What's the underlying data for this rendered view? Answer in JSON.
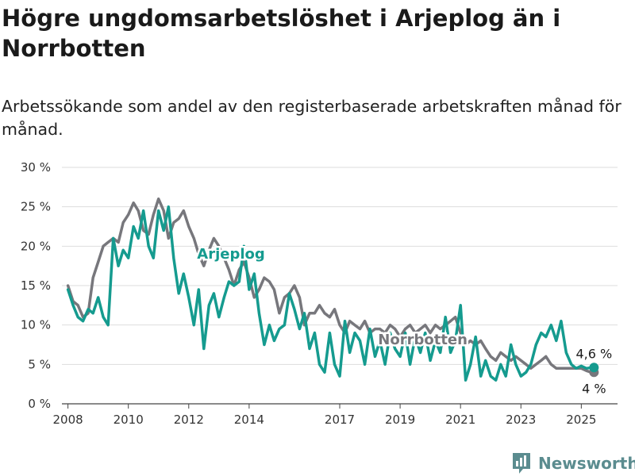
{
  "header": {
    "title": "Högre ungdomsarbetslöshet i Arjeplog än i Norrbotten",
    "subtitle": "Arbetssökande som andel av den registerbaserade arbetskraften månad för månad."
  },
  "brand": {
    "name": "Newsworthy",
    "icon": "bar-chart-logo-icon"
  },
  "chart_data": {
    "type": "line",
    "ylim": [
      0,
      30
    ],
    "xlim": [
      2007.8,
      2026.2
    ],
    "grid": "horizontal",
    "y_ticks": [
      {
        "value": 0,
        "label": "0 %"
      },
      {
        "value": 5,
        "label": "5 %"
      },
      {
        "value": 10,
        "label": "10 %"
      },
      {
        "value": 15,
        "label": "15 %"
      },
      {
        "value": 20,
        "label": "20 %"
      },
      {
        "value": 25,
        "label": "25 %"
      },
      {
        "value": 30,
        "label": "30 %"
      }
    ],
    "x_ticks": [
      {
        "value": 2008,
        "label": "2008"
      },
      {
        "value": 2010,
        "label": "2010"
      },
      {
        "value": 2012,
        "label": "2012"
      },
      {
        "value": 2014,
        "label": "2014"
      },
      {
        "value": 2017,
        "label": "2017"
      },
      {
        "value": 2019,
        "label": "2019"
      },
      {
        "value": 2021,
        "label": "2021"
      },
      {
        "value": 2023,
        "label": "2023"
      },
      {
        "value": 2025,
        "label": "2025"
      }
    ],
    "series": [
      {
        "name": "Norrbotten",
        "color": "#77777c",
        "end_label": "4 %",
        "points": [
          [
            2008.0,
            15
          ],
          [
            2008.17,
            13
          ],
          [
            2008.33,
            12.5
          ],
          [
            2008.5,
            11
          ],
          [
            2008.67,
            11.5
          ],
          [
            2008.83,
            16
          ],
          [
            2009.0,
            18
          ],
          [
            2009.17,
            20
          ],
          [
            2009.33,
            20.5
          ],
          [
            2009.5,
            21
          ],
          [
            2009.67,
            20.5
          ],
          [
            2009.83,
            23
          ],
          [
            2010.0,
            24
          ],
          [
            2010.17,
            25.5
          ],
          [
            2010.33,
            24.5
          ],
          [
            2010.5,
            22
          ],
          [
            2010.67,
            21.5
          ],
          [
            2010.83,
            24
          ],
          [
            2011.0,
            26
          ],
          [
            2011.17,
            24.5
          ],
          [
            2011.33,
            21
          ],
          [
            2011.5,
            23
          ],
          [
            2011.67,
            23.5
          ],
          [
            2011.83,
            24.5
          ],
          [
            2012.0,
            22.5
          ],
          [
            2012.17,
            21
          ],
          [
            2012.33,
            19
          ],
          [
            2012.5,
            17.5
          ],
          [
            2012.67,
            19.5
          ],
          [
            2012.83,
            21
          ],
          [
            2013.0,
            20
          ],
          [
            2013.17,
            18.5
          ],
          [
            2013.33,
            17
          ],
          [
            2013.5,
            15
          ],
          [
            2013.67,
            17
          ],
          [
            2013.83,
            18
          ],
          [
            2014.0,
            16
          ],
          [
            2014.17,
            13.5
          ],
          [
            2014.33,
            14.5
          ],
          [
            2014.5,
            16
          ],
          [
            2014.67,
            15.5
          ],
          [
            2014.83,
            14.5
          ],
          [
            2015.0,
            11.5
          ],
          [
            2015.17,
            13.5
          ],
          [
            2015.33,
            14
          ],
          [
            2015.5,
            15
          ],
          [
            2015.67,
            13.5
          ],
          [
            2015.83,
            10
          ],
          [
            2016.0,
            11.5
          ],
          [
            2016.17,
            11.5
          ],
          [
            2016.33,
            12.5
          ],
          [
            2016.5,
            11.5
          ],
          [
            2016.67,
            11
          ],
          [
            2016.83,
            12
          ],
          [
            2017.0,
            10
          ],
          [
            2017.17,
            9
          ],
          [
            2017.33,
            10.5
          ],
          [
            2017.5,
            10
          ],
          [
            2017.67,
            9.5
          ],
          [
            2017.83,
            10.5
          ],
          [
            2018.0,
            9
          ],
          [
            2018.17,
            9.5
          ],
          [
            2018.33,
            9.5
          ],
          [
            2018.5,
            9
          ],
          [
            2018.67,
            10
          ],
          [
            2018.83,
            9.5
          ],
          [
            2019.0,
            8.5
          ],
          [
            2019.17,
            9.5
          ],
          [
            2019.33,
            10
          ],
          [
            2019.5,
            9
          ],
          [
            2019.67,
            9.5
          ],
          [
            2019.83,
            10
          ],
          [
            2020.0,
            9
          ],
          [
            2020.17,
            10
          ],
          [
            2020.33,
            9.5
          ],
          [
            2020.5,
            10
          ],
          [
            2020.67,
            10.5
          ],
          [
            2020.83,
            11
          ],
          [
            2021.0,
            9
          ],
          [
            2021.17,
            7.5
          ],
          [
            2021.33,
            8
          ],
          [
            2021.5,
            7.5
          ],
          [
            2021.67,
            8
          ],
          [
            2021.83,
            7
          ],
          [
            2022.0,
            6
          ],
          [
            2022.17,
            5.5
          ],
          [
            2022.33,
            6.5
          ],
          [
            2022.5,
            6
          ],
          [
            2022.67,
            5.5
          ],
          [
            2022.83,
            6
          ],
          [
            2023.0,
            5.5
          ],
          [
            2023.17,
            5
          ],
          [
            2023.33,
            4.5
          ],
          [
            2023.5,
            5
          ],
          [
            2023.67,
            5.5
          ],
          [
            2023.83,
            6
          ],
          [
            2024.0,
            5
          ],
          [
            2024.17,
            4.5
          ],
          [
            2024.33,
            4.5
          ],
          [
            2024.5,
            4.5
          ],
          [
            2024.67,
            4.5
          ],
          [
            2024.83,
            4.5
          ],
          [
            2025.0,
            4.5
          ],
          [
            2025.17,
            4.2
          ],
          [
            2025.33,
            4
          ],
          [
            2025.42,
            4
          ]
        ]
      },
      {
        "name": "Arjeplog",
        "color": "#159b8f",
        "end_label": "4,6 %",
        "points": [
          [
            2008.0,
            14.5
          ],
          [
            2008.17,
            12.5
          ],
          [
            2008.33,
            11
          ],
          [
            2008.5,
            10.5
          ],
          [
            2008.67,
            12
          ],
          [
            2008.83,
            11.5
          ],
          [
            2009.0,
            13.5
          ],
          [
            2009.17,
            11
          ],
          [
            2009.33,
            10
          ],
          [
            2009.5,
            21
          ],
          [
            2009.67,
            17.5
          ],
          [
            2009.83,
            19.5
          ],
          [
            2010.0,
            18.5
          ],
          [
            2010.17,
            22.5
          ],
          [
            2010.33,
            21
          ],
          [
            2010.5,
            24.5
          ],
          [
            2010.67,
            20
          ],
          [
            2010.83,
            18.5
          ],
          [
            2011.0,
            24.5
          ],
          [
            2011.17,
            22
          ],
          [
            2011.33,
            25
          ],
          [
            2011.5,
            18.5
          ],
          [
            2011.67,
            14
          ],
          [
            2011.83,
            16.5
          ],
          [
            2012.0,
            13.5
          ],
          [
            2012.17,
            10
          ],
          [
            2012.33,
            14.5
          ],
          [
            2012.5,
            7
          ],
          [
            2012.67,
            12.5
          ],
          [
            2012.83,
            14
          ],
          [
            2013.0,
            11
          ],
          [
            2013.17,
            13.5
          ],
          [
            2013.33,
            15.5
          ],
          [
            2013.5,
            15
          ],
          [
            2013.67,
            15.5
          ],
          [
            2013.83,
            20
          ],
          [
            2014.0,
            14.5
          ],
          [
            2014.17,
            16.5
          ],
          [
            2014.33,
            11.5
          ],
          [
            2014.5,
            7.5
          ],
          [
            2014.67,
            10
          ],
          [
            2014.83,
            8
          ],
          [
            2015.0,
            9.5
          ],
          [
            2015.17,
            10
          ],
          [
            2015.33,
            14
          ],
          [
            2015.5,
            12
          ],
          [
            2015.67,
            9.5
          ],
          [
            2015.83,
            11.5
          ],
          [
            2016.0,
            7
          ],
          [
            2016.17,
            9
          ],
          [
            2016.33,
            5
          ],
          [
            2016.5,
            4
          ],
          [
            2016.67,
            9
          ],
          [
            2016.83,
            5
          ],
          [
            2017.0,
            3.5
          ],
          [
            2017.17,
            10.5
          ],
          [
            2017.33,
            6.5
          ],
          [
            2017.5,
            9
          ],
          [
            2017.67,
            8
          ],
          [
            2017.83,
            5
          ],
          [
            2018.0,
            9.5
          ],
          [
            2018.17,
            6
          ],
          [
            2018.33,
            8
          ],
          [
            2018.5,
            5
          ],
          [
            2018.67,
            9
          ],
          [
            2018.83,
            7
          ],
          [
            2019.0,
            6
          ],
          [
            2019.17,
            9
          ],
          [
            2019.33,
            5
          ],
          [
            2019.5,
            8.5
          ],
          [
            2019.67,
            6.5
          ],
          [
            2019.83,
            9
          ],
          [
            2020.0,
            5.5
          ],
          [
            2020.17,
            8
          ],
          [
            2020.33,
            6.5
          ],
          [
            2020.5,
            11
          ],
          [
            2020.67,
            6.5
          ],
          [
            2020.83,
            8
          ],
          [
            2021.0,
            12.5
          ],
          [
            2021.17,
            3
          ],
          [
            2021.33,
            5
          ],
          [
            2021.5,
            8.5
          ],
          [
            2021.67,
            3.5
          ],
          [
            2021.83,
            5.5
          ],
          [
            2022.0,
            3.5
          ],
          [
            2022.17,
            3
          ],
          [
            2022.33,
            5
          ],
          [
            2022.5,
            3.5
          ],
          [
            2022.67,
            7.5
          ],
          [
            2022.83,
            5
          ],
          [
            2023.0,
            3.5
          ],
          [
            2023.17,
            4
          ],
          [
            2023.33,
            5
          ],
          [
            2023.5,
            7.5
          ],
          [
            2023.67,
            9
          ],
          [
            2023.83,
            8.5
          ],
          [
            2024.0,
            10
          ],
          [
            2024.17,
            8
          ],
          [
            2024.33,
            10.5
          ],
          [
            2024.5,
            6.5
          ],
          [
            2024.67,
            5
          ],
          [
            2024.83,
            4.5
          ],
          [
            2025.0,
            4.8
          ],
          [
            2025.17,
            4.5
          ],
          [
            2025.33,
            4.6
          ],
          [
            2025.42,
            4.6
          ]
        ]
      }
    ]
  }
}
